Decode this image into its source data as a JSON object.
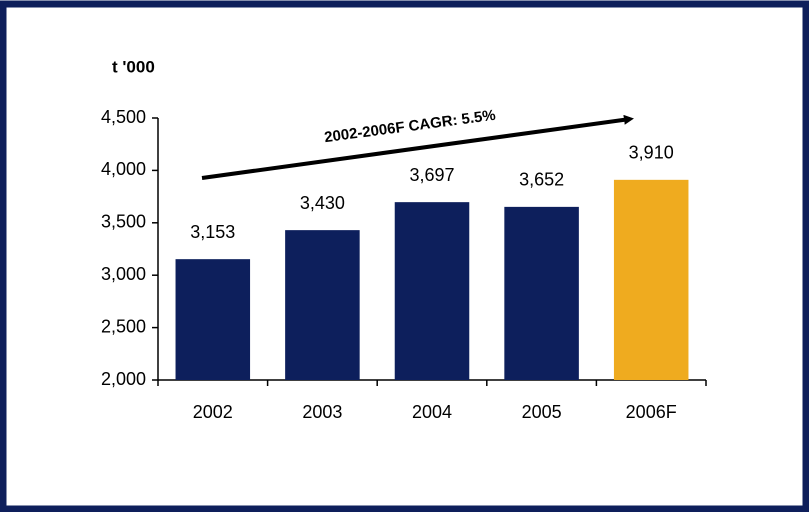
{
  "chart_data": {
    "type": "bar",
    "axis_label": "t '000",
    "annotation": "2002-2006F CAGR: 5.5%",
    "categories": [
      "2002",
      "2003",
      "2004",
      "2005",
      "2006F"
    ],
    "values": [
      3153,
      3430,
      3697,
      3652,
      3910
    ],
    "value_labels": [
      "3,153",
      "3,430",
      "3,697",
      "3,652",
      "3,910"
    ],
    "colors": [
      "#0d1f5c",
      "#0d1f5c",
      "#0d1f5c",
      "#0d1f5c",
      "#efab1f"
    ],
    "ylim": [
      2000,
      4500
    ],
    "yticks": [
      {
        "value": 2000,
        "label": "2,000"
      },
      {
        "value": 2500,
        "label": "2,500"
      },
      {
        "value": 3000,
        "label": "3,000"
      },
      {
        "value": 3500,
        "label": "3,500"
      },
      {
        "value": 4000,
        "label": "4,000"
      },
      {
        "value": 4500,
        "label": "4,500"
      }
    ],
    "grid": false
  }
}
